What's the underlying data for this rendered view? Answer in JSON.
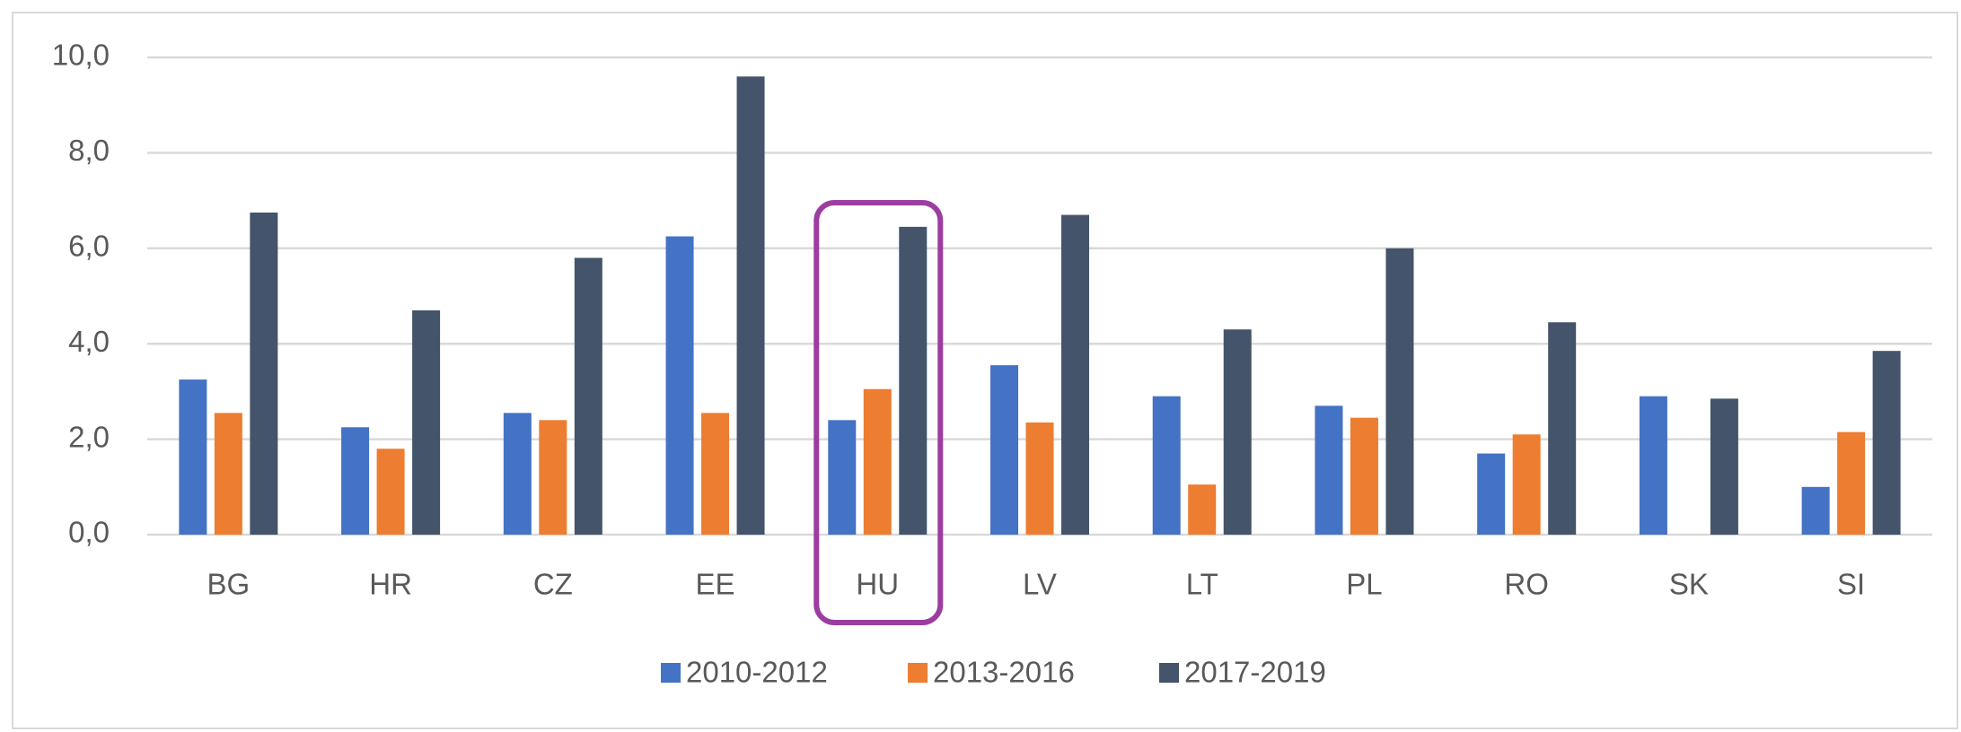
{
  "chart_data": {
    "type": "bar",
    "categories": [
      "BG",
      "HR",
      "CZ",
      "EE",
      "HU",
      "LV",
      "LT",
      "PL",
      "RO",
      "SK",
      "SI"
    ],
    "series": [
      {
        "name": "2010-2012",
        "color": "#4472c4",
        "values": [
          3.25,
          2.25,
          2.55,
          6.25,
          2.4,
          3.55,
          2.9,
          2.7,
          1.7,
          2.9,
          1.0
        ]
      },
      {
        "name": "2013-2016",
        "color": "#ed7d31",
        "values": [
          2.55,
          1.8,
          2.4,
          2.55,
          3.05,
          2.35,
          1.05,
          2.45,
          2.1,
          null,
          2.15
        ]
      },
      {
        "name": "2017-2019",
        "color": "#44546a",
        "values": [
          6.75,
          4.7,
          5.8,
          9.6,
          6.45,
          6.7,
          4.3,
          6.0,
          4.45,
          2.85,
          3.85
        ]
      }
    ],
    "ylim": [
      0,
      10
    ],
    "yticks": [
      {
        "value": 0,
        "label": "0,0"
      },
      {
        "value": 2,
        "label": "2,0"
      },
      {
        "value": 4,
        "label": "4,0"
      },
      {
        "value": 6,
        "label": "6,0"
      },
      {
        "value": 8,
        "label": "8,0"
      },
      {
        "value": 10,
        "label": "10,0"
      }
    ],
    "grid": true,
    "legend": "bottom"
  }
}
